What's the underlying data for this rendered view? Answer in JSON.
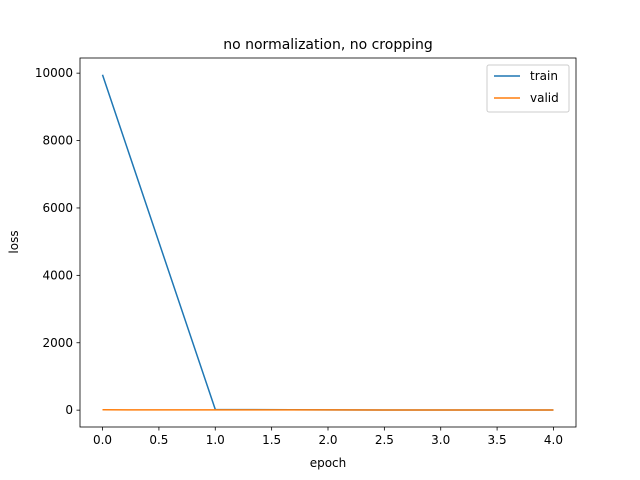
{
  "chart_data": {
    "type": "line",
    "title": "no normalization, no cropping",
    "xlabel": "epoch",
    "ylabel": "loss",
    "xlim": [
      -0.2,
      4.2
    ],
    "ylim": [
      -500,
      10450
    ],
    "xticks": [
      0.0,
      0.5,
      1.0,
      1.5,
      2.0,
      2.5,
      3.0,
      3.5,
      4.0
    ],
    "xtick_labels": [
      "0.0",
      "0.5",
      "1.0",
      "1.5",
      "2.0",
      "2.5",
      "3.0",
      "3.5",
      "4.0"
    ],
    "yticks": [
      0,
      2000,
      4000,
      6000,
      8000,
      10000
    ],
    "ytick_labels": [
      "0",
      "2000",
      "4000",
      "6000",
      "8000",
      "10000"
    ],
    "grid": false,
    "legend_position": "top-right",
    "series": [
      {
        "name": "train",
        "color": "#1f77b4",
        "x": [
          0,
          1,
          2,
          3,
          4
        ],
        "y": [
          9950,
          20,
          8,
          5,
          4
        ]
      },
      {
        "name": "valid",
        "color": "#ff7f0e",
        "x": [
          0,
          1,
          2,
          3,
          4
        ],
        "y": [
          10,
          8,
          6,
          5,
          4
        ]
      }
    ]
  }
}
